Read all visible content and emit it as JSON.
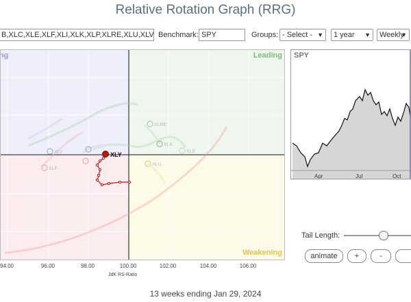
{
  "title": "Relative Rotation Graph (RRG)",
  "toolbar": {
    "symbols_value": "B,XLC,XLE,XLF,XLI,XLK,XLP,XLRE,XLU,XLV,XL",
    "benchmark_label": "Benchmark:",
    "benchmark_value": "SPY",
    "groups_label": "Groups:",
    "groups_value": "- Select -",
    "period_value": "1 year",
    "frequency_value": "Weekly"
  },
  "quadrants": {
    "leading": "Leading",
    "improving": "Improving",
    "weakening": "Weakening"
  },
  "x_axis": {
    "label": "JdK RS-Ratio",
    "ticks": [
      "94.00",
      "96.00",
      "98.00",
      "100.00",
      "102.00",
      "104.00",
      "106.00"
    ]
  },
  "highlight_symbol": "XLY",
  "faded_labels": [
    "XLRE",
    "XLK",
    "XLV",
    "XLF",
    "XLU",
    "XLE"
  ],
  "spy_chart": {
    "title": "SPY",
    "x_labels": [
      "Apr",
      "Jul",
      "Oct"
    ]
  },
  "controls": {
    "tail_length_label": "Tail Length:",
    "animate": "animate",
    "plus": "+",
    "minus": "-"
  },
  "footer": "13 weeks ending Jan 29, 2024",
  "colors": {
    "leading": "#7cbd7c",
    "improving": "#9b9be5",
    "weakening": "#e5c24a",
    "lagging": "#e07b84",
    "highlight": "#d01010"
  }
}
